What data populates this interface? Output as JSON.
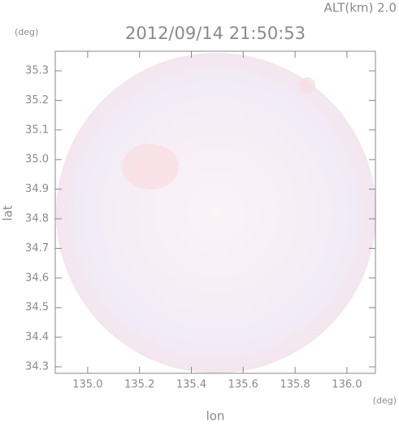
{
  "chart_data": {
    "type": "map",
    "title": "2012/09/14 21:50:53",
    "subtitle": "ALT(km) 2.0",
    "xlabel": "lon",
    "ylabel": "lat",
    "xunit": "(deg)",
    "yunit": "(deg)",
    "xlim": [
      134.875,
      136.11
    ],
    "ylim": [
      34.278,
      35.366
    ],
    "xticks": [
      {
        "value": 135,
        "label": "135.0"
      },
      {
        "value": 135.2,
        "label": "135.2"
      },
      {
        "value": 135.4,
        "label": "135.4"
      },
      {
        "value": 135.6,
        "label": "135.6"
      },
      {
        "value": 135.8,
        "label": "135.8"
      },
      {
        "value": 136,
        "label": "136.0"
      }
    ],
    "yticks": [
      34.3,
      34.4,
      34.5,
      34.6,
      34.7,
      34.8,
      34.9,
      {
        "value": 35,
        "label": "35.0"
      },
      35.1,
      35.2,
      35.3
    ]
  }
}
